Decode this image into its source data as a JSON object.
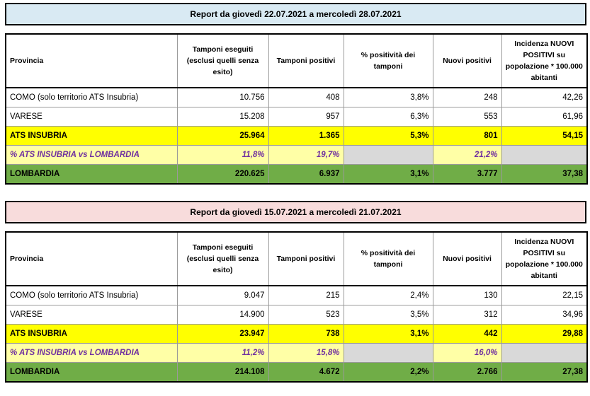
{
  "headers": {
    "provincia": "Provincia",
    "tamponi": "Tamponi eseguiti (esclusi quelli senza esito)",
    "positivi": "Tamponi positivi",
    "positivita": "% positività dei tamponi",
    "nuovi": "Nuovi positivi",
    "incidenza": "Incidenza NUOVI POSITIVI su popolazione * 100.000 abitanti"
  },
  "reports": [
    {
      "title": "Report da giovedì 22.07.2021 a mercoledì 28.07.2021",
      "rows": [
        {
          "provincia": "COMO (solo territorio ATS Insubria)",
          "tamponi": "10.756",
          "positivi": "408",
          "positivita": "3,8%",
          "nuovi": "248",
          "incidenza": "42,26"
        },
        {
          "provincia": "VARESE",
          "tamponi": "15.208",
          "positivi": "957",
          "positivita": "6,3%",
          "nuovi": "553",
          "incidenza": "61,96"
        },
        {
          "provincia": "ATS INSUBRIA",
          "tamponi": "25.964",
          "positivi": "1.365",
          "positivita": "5,3%",
          "nuovi": "801",
          "incidenza": "54,15"
        },
        {
          "provincia": "% ATS INSUBRIA vs LOMBARDIA",
          "tamponi": "11,8%",
          "positivi": "19,7%",
          "positivita": "",
          "nuovi": "21,2%",
          "incidenza": ""
        },
        {
          "provincia": "LOMBARDIA",
          "tamponi": "220.625",
          "positivi": "6.937",
          "positivita": "3,1%",
          "nuovi": "3.777",
          "incidenza": "37,38"
        }
      ]
    },
    {
      "title": "Report da giovedì 15.07.2021 a mercoledì 21.07.2021",
      "rows": [
        {
          "provincia": "COMO (solo territorio ATS Insubria)",
          "tamponi": "9.047",
          "positivi": "215",
          "positivita": "2,4%",
          "nuovi": "130",
          "incidenza": "22,15"
        },
        {
          "provincia": "VARESE",
          "tamponi": "14.900",
          "positivi": "523",
          "positivita": "3,5%",
          "nuovi": "312",
          "incidenza": "34,96"
        },
        {
          "provincia": "ATS INSUBRIA",
          "tamponi": "23.947",
          "positivi": "738",
          "positivita": "3,1%",
          "nuovi": "442",
          "incidenza": "29,88"
        },
        {
          "provincia": "% ATS INSUBRIA vs LOMBARDIA",
          "tamponi": "11,2%",
          "positivi": "15,8%",
          "positivita": "",
          "nuovi": "16,0%",
          "incidenza": ""
        },
        {
          "provincia": "LOMBARDIA",
          "tamponi": "214.108",
          "positivi": "4.672",
          "positivita": "2,2%",
          "nuovi": "2.766",
          "incidenza": "27,38"
        }
      ]
    }
  ]
}
